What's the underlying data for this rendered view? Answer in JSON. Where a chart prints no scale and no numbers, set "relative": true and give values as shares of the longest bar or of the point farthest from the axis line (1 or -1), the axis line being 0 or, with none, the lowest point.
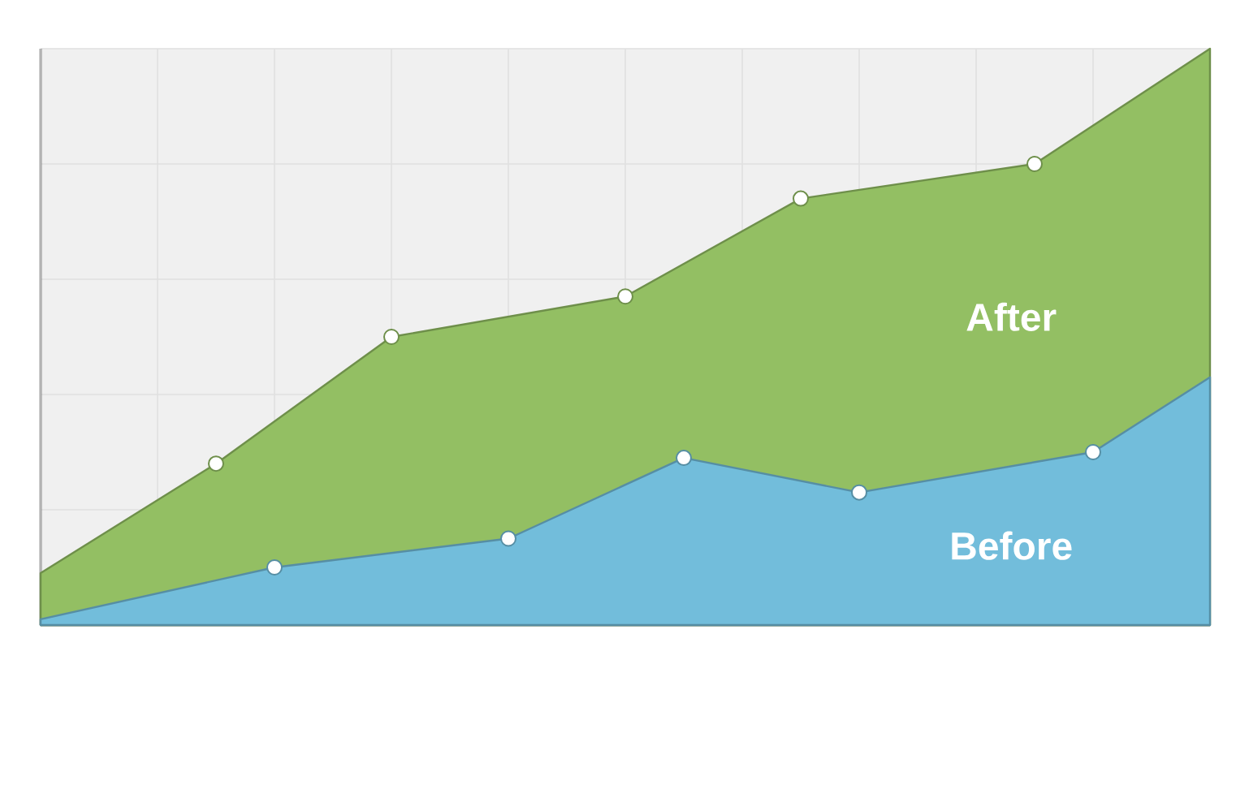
{
  "chart_data": {
    "type": "area",
    "relative": true,
    "grid": true,
    "marker": "circle",
    "categories": [
      null,
      null,
      null,
      null,
      null,
      null,
      null,
      null,
      null,
      null,
      null,
      null,
      null,
      null,
      null,
      null,
      null,
      null,
      null,
      null,
      null
    ],
    "series": [
      {
        "name": "After",
        "color": "#93bf63",
        "values": [
          0.09,
          null,
          null,
          0.28,
          null,
          null,
          0.5,
          null,
          null,
          null,
          0.57,
          null,
          null,
          0.74,
          null,
          null,
          null,
          0.8,
          null,
          null,
          1.0
        ]
      },
      {
        "name": "Before",
        "color": "#72bddb",
        "values": [
          0.01,
          null,
          null,
          null,
          0.1,
          null,
          null,
          null,
          0.15,
          null,
          null,
          0.29,
          null,
          null,
          0.23,
          null,
          null,
          null,
          0.3,
          null,
          0.43
        ]
      }
    ]
  }
}
